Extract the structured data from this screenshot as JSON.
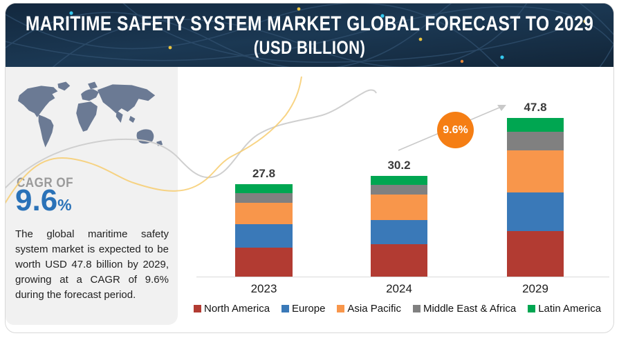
{
  "header": {
    "title_line1": "MARITIME SAFETY SYSTEM MARKET GLOBAL FORECAST TO 2029",
    "title_line2": "(USD BILLION)"
  },
  "sidebar": {
    "cagr_label": "CAGR OF",
    "cagr_value": "9.6",
    "cagr_unit": "%",
    "description": "The global maritime safety system market is expected to be worth USD 47.8 billion by 2029, growing at a CAGR of 9.6% during the forecast period.",
    "map_icon": "world-map"
  },
  "chart_data": {
    "type": "bar",
    "stacked": true,
    "unit": "USD Billion",
    "categories": [
      "2023",
      "2024",
      "2029"
    ],
    "totals": [
      27.8,
      30.2,
      47.8
    ],
    "series": [
      {
        "name": "North America",
        "color": "#b23b32",
        "values": [
          8.8,
          9.7,
          13.7
        ]
      },
      {
        "name": "Europe",
        "color": "#3a79b8",
        "values": [
          6.9,
          7.3,
          11.6
        ]
      },
      {
        "name": "Asia Pacific",
        "color": "#f8964b",
        "values": [
          6.6,
          7.6,
          12.7
        ]
      },
      {
        "name": "Middle East & Africa",
        "color": "#808080",
        "values": [
          2.9,
          3.1,
          5.5
        ]
      },
      {
        "name": "Latin America",
        "color": "#00a651",
        "values": [
          2.6,
          2.5,
          4.3
        ]
      }
    ],
    "annotation": {
      "cagr_badge": "9.6%"
    },
    "legend_position": "bottom",
    "title": "",
    "xlabel": "",
    "ylabel": ""
  },
  "colors": {
    "header_bg": "#16293d",
    "panel_bg": "#f1f1f1",
    "cagr_blue": "#2a72b8",
    "badge_orange": "#f57e14",
    "axis_gray": "#d9d9d9",
    "decor_gray": "#cfcfcf",
    "decor_yellow": "#f7cd6e"
  }
}
